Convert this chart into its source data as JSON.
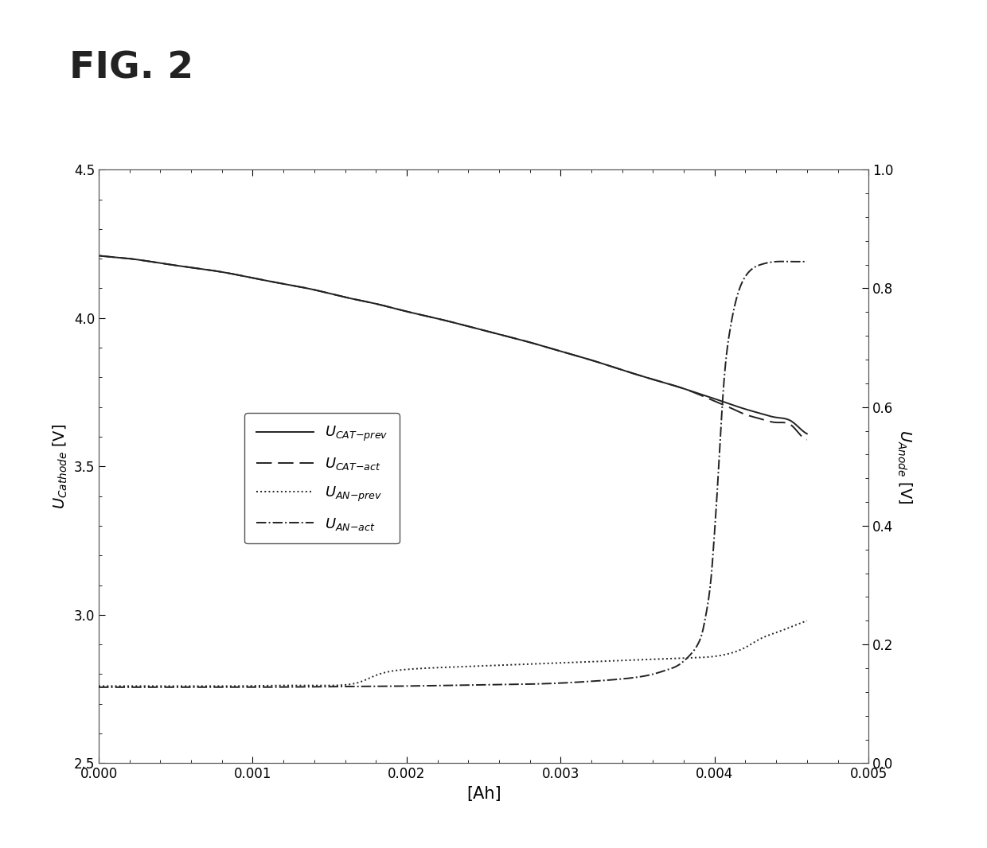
{
  "title": "FIG. 2",
  "xlabel": "[Ah]",
  "ylabel_left": "U_Cathode [V]",
  "ylabel_right": "U_Anode [V]",
  "ylim_left": [
    2.5,
    4.5
  ],
  "ylim_right": [
    0.0,
    1.0
  ],
  "xlim": [
    0.0,
    0.005
  ],
  "xticks": [
    0.0,
    0.001,
    0.002,
    0.003,
    0.004,
    0.005
  ],
  "yticks_left": [
    2.5,
    3.0,
    3.5,
    4.0,
    4.5
  ],
  "yticks_right": [
    0.0,
    0.2,
    0.4,
    0.6,
    0.8,
    1.0
  ],
  "background_color": "#ffffff",
  "line_color": "#222222",
  "cat_prev_x": [
    0.0,
    0.0001,
    0.0002,
    0.0004,
    0.0006,
    0.0008,
    0.001,
    0.0012,
    0.0014,
    0.0016,
    0.0018,
    0.002,
    0.0022,
    0.0024,
    0.0026,
    0.0028,
    0.003,
    0.0032,
    0.0034,
    0.0036,
    0.0038,
    0.0039,
    0.004,
    0.0041,
    0.0042,
    0.0043,
    0.0044,
    0.0045,
    0.00455,
    0.0046
  ],
  "cat_prev_y": [
    4.21,
    4.205,
    4.2,
    4.185,
    4.17,
    4.155,
    4.135,
    4.115,
    4.095,
    4.07,
    4.048,
    4.022,
    3.998,
    3.972,
    3.945,
    3.918,
    3.888,
    3.858,
    3.825,
    3.793,
    3.762,
    3.745,
    3.728,
    3.71,
    3.693,
    3.678,
    3.665,
    3.652,
    3.63,
    3.61
  ],
  "cat_act_x": [
    0.0,
    0.0001,
    0.0002,
    0.0004,
    0.0006,
    0.0008,
    0.001,
    0.0012,
    0.0014,
    0.0016,
    0.0018,
    0.002,
    0.0022,
    0.0024,
    0.0026,
    0.0028,
    0.003,
    0.0032,
    0.0034,
    0.0036,
    0.0038,
    0.0039,
    0.004,
    0.0041,
    0.0042,
    0.0043,
    0.0044,
    0.0045,
    0.00455,
    0.0046
  ],
  "cat_act_y": [
    4.21,
    4.205,
    4.2,
    4.185,
    4.17,
    4.155,
    4.135,
    4.115,
    4.095,
    4.07,
    4.048,
    4.022,
    3.998,
    3.972,
    3.945,
    3.918,
    3.888,
    3.858,
    3.825,
    3.793,
    3.762,
    3.742,
    3.72,
    3.698,
    3.675,
    3.66,
    3.648,
    3.638,
    3.61,
    3.59
  ],
  "an_prev_x": [
    0.0,
    0.0001,
    0.0003,
    0.0006,
    0.0009,
    0.0012,
    0.0015,
    0.0016,
    0.0017,
    0.0018,
    0.0019,
    0.002,
    0.0022,
    0.0024,
    0.0026,
    0.0028,
    0.003,
    0.0032,
    0.0034,
    0.0036,
    0.0038,
    0.004,
    0.0041,
    0.0042,
    0.0043,
    0.0044,
    0.0045,
    0.0046
  ],
  "an_prev_y": [
    0.13,
    0.13,
    0.13,
    0.13,
    0.13,
    0.131,
    0.131,
    0.132,
    0.137,
    0.148,
    0.155,
    0.158,
    0.161,
    0.163,
    0.165,
    0.167,
    0.169,
    0.171,
    0.173,
    0.175,
    0.177,
    0.18,
    0.185,
    0.195,
    0.21,
    0.22,
    0.23,
    0.24
  ],
  "an_act_x": [
    0.0,
    0.0002,
    0.0004,
    0.0006,
    0.001,
    0.0015,
    0.002,
    0.0025,
    0.003,
    0.0032,
    0.0034,
    0.0035,
    0.0036,
    0.0037,
    0.00375,
    0.0038,
    0.00385,
    0.0039,
    0.00392,
    0.00394,
    0.00396,
    0.00398,
    0.004,
    0.00402,
    0.00404,
    0.00406,
    0.0041,
    0.00415,
    0.0042,
    0.0043,
    0.0044,
    0.0045,
    0.00455,
    0.0046
  ],
  "an_act_y": [
    0.128,
    0.128,
    0.128,
    0.128,
    0.128,
    0.129,
    0.13,
    0.132,
    0.135,
    0.138,
    0.142,
    0.145,
    0.15,
    0.158,
    0.163,
    0.172,
    0.185,
    0.205,
    0.22,
    0.245,
    0.275,
    0.32,
    0.39,
    0.47,
    0.56,
    0.64,
    0.73,
    0.79,
    0.82,
    0.84,
    0.845,
    0.845,
    0.845,
    0.845
  ]
}
